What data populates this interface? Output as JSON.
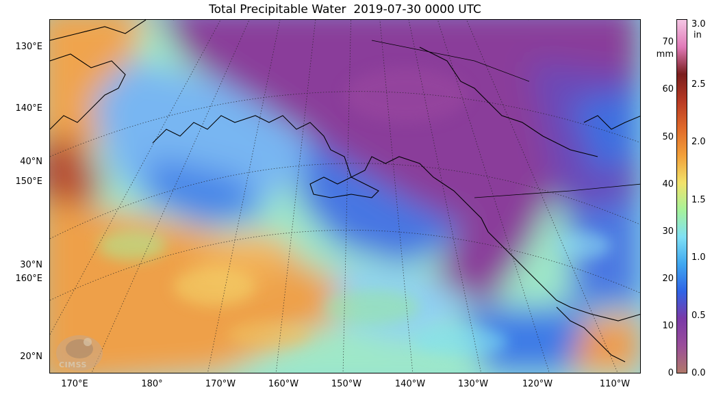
{
  "title": "Total Precipitable Water  2019-07-30 0000 UTC",
  "left_labels": [
    "130°E",
    "140°E",
    "40°N",
    "150°E",
    "30°N",
    "160°E",
    "20°N"
  ],
  "bottom_labels": [
    "170°E",
    "180°",
    "170°W",
    "160°W",
    "150°W",
    "140°W",
    "130°W",
    "120°W",
    "110°W"
  ],
  "colorbar": {
    "mm_ticks": [
      "70",
      "60",
      "50",
      "40",
      "30",
      "20",
      "10",
      "0"
    ],
    "mm_unit": "mm",
    "in_ticks": [
      "3.0",
      "2.5",
      "2.0",
      "1.5",
      "1.0",
      "0.5",
      "0.0"
    ],
    "in_unit": "in",
    "range_mm": [
      0,
      75
    ],
    "colors": [
      "#b0786a",
      "#9a4e9a",
      "#7a3aa8",
      "#2f64e6",
      "#3fa7f0",
      "#7fe0f4",
      "#a7f29a",
      "#f2e26a",
      "#f2a03a",
      "#e06a2a",
      "#b83a24",
      "#7a1e1e",
      "#e07ab8",
      "#f4c6e4"
    ]
  },
  "logo_text": "CIMSS",
  "palette": {
    "dry": "#8a3e9a",
    "moist_blue": "#3f86ec",
    "moist_cyan": "#7fd6f4",
    "wet_orange": "#eea04a",
    "very_wet": "#b44a2a",
    "coast": "#000000"
  }
}
